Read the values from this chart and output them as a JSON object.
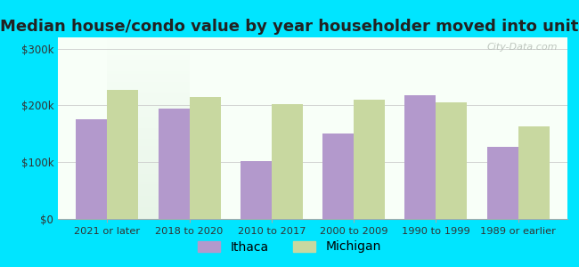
{
  "title": "Median house/condo value by year householder moved into unit",
  "categories": [
    "2021 or later",
    "2018 to 2020",
    "2010 to 2017",
    "2000 to 2009",
    "1990 to 1999",
    "1989 or earlier"
  ],
  "ithaca_values": [
    175000,
    195000,
    102000,
    150000,
    218000,
    127000
  ],
  "michigan_values": [
    228000,
    215000,
    203000,
    210000,
    205000,
    163000
  ],
  "ithaca_color": "#b399cc",
  "michigan_color": "#c8d8a0",
  "background_outer": "#00e5ff",
  "background_inner_top": "#e8f5e8",
  "background_inner_bottom": "#f8fff8",
  "ylim": [
    0,
    320000
  ],
  "yticks": [
    0,
    100000,
    200000,
    300000
  ],
  "ytick_labels": [
    "$0",
    "$100k",
    "$200k",
    "$300k"
  ],
  "legend_labels": [
    "Ithaca",
    "Michigan"
  ],
  "title_fontsize": 13,
  "watermark": "City-Data.com"
}
